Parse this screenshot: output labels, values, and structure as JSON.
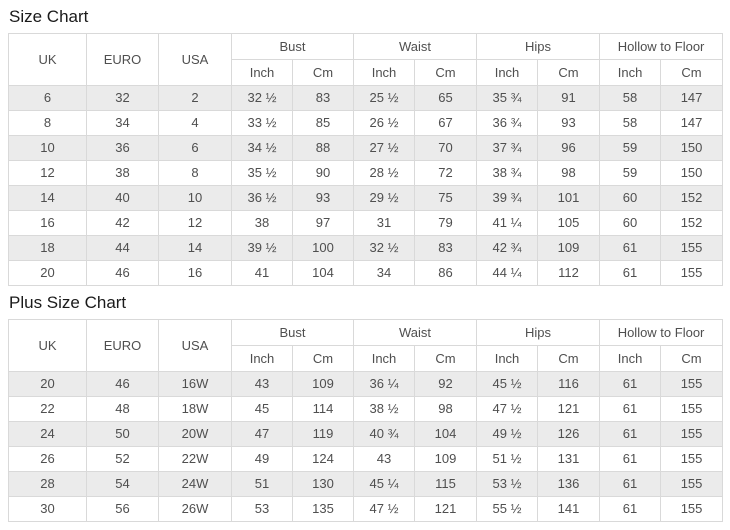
{
  "colors": {
    "stripe": "#ebebeb",
    "border": "#d9d9d9",
    "text": "#4f4f4f",
    "title": "#1a1a1a",
    "background": "#ffffff"
  },
  "tables": [
    {
      "title": "Size Chart",
      "header": {
        "simple_columns": [
          "UK",
          "EURO",
          "USA"
        ],
        "group_columns": [
          "Bust",
          "Waist",
          "Hips",
          "Hollow to Floor"
        ],
        "unit_columns": [
          "Inch",
          "Cm"
        ]
      },
      "rows": [
        [
          "6",
          "32",
          "2",
          "32 ½",
          "83",
          "25 ½",
          "65",
          "35 ¾",
          "91",
          "58",
          "147"
        ],
        [
          "8",
          "34",
          "4",
          "33 ½",
          "85",
          "26 ½",
          "67",
          "36 ¾",
          "93",
          "58",
          "147"
        ],
        [
          "10",
          "36",
          "6",
          "34 ½",
          "88",
          "27 ½",
          "70",
          "37 ¾",
          "96",
          "59",
          "150"
        ],
        [
          "12",
          "38",
          "8",
          "35 ½",
          "90",
          "28 ½",
          "72",
          "38 ¾",
          "98",
          "59",
          "150"
        ],
        [
          "14",
          "40",
          "10",
          "36 ½",
          "93",
          "29 ½",
          "75",
          "39 ¾",
          "101",
          "60",
          "152"
        ],
        [
          "16",
          "42",
          "12",
          "38",
          "97",
          "31",
          "79",
          "41 ¼",
          "105",
          "60",
          "152"
        ],
        [
          "18",
          "44",
          "14",
          "39 ½",
          "100",
          "32 ½",
          "83",
          "42 ¾",
          "109",
          "61",
          "155"
        ],
        [
          "20",
          "46",
          "16",
          "41",
          "104",
          "34",
          "86",
          "44 ¼",
          "112",
          "61",
          "155"
        ]
      ]
    },
    {
      "title": "Plus Size Chart",
      "header": {
        "simple_columns": [
          "UK",
          "EURO",
          "USA"
        ],
        "group_columns": [
          "Bust",
          "Waist",
          "Hips",
          "Hollow to Floor"
        ],
        "unit_columns": [
          "Inch",
          "Cm"
        ]
      },
      "rows": [
        [
          "20",
          "46",
          "16W",
          "43",
          "109",
          "36 ¼",
          "92",
          "45 ½",
          "116",
          "61",
          "155"
        ],
        [
          "22",
          "48",
          "18W",
          "45",
          "114",
          "38 ½",
          "98",
          "47 ½",
          "121",
          "61",
          "155"
        ],
        [
          "24",
          "50",
          "20W",
          "47",
          "119",
          "40 ¾",
          "104",
          "49 ½",
          "126",
          "61",
          "155"
        ],
        [
          "26",
          "52",
          "22W",
          "49",
          "124",
          "43",
          "109",
          "51 ½",
          "131",
          "61",
          "155"
        ],
        [
          "28",
          "54",
          "24W",
          "51",
          "130",
          "45 ¼",
          "115",
          "53 ½",
          "136",
          "61",
          "155"
        ],
        [
          "30",
          "56",
          "26W",
          "53",
          "135",
          "47 ½",
          "121",
          "55 ½",
          "141",
          "61",
          "155"
        ]
      ]
    }
  ]
}
